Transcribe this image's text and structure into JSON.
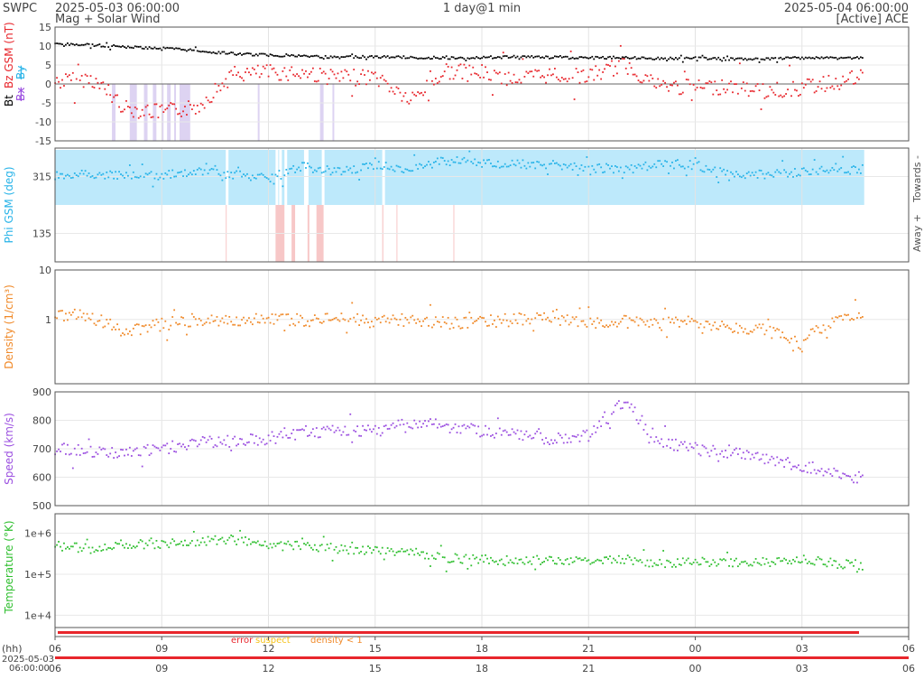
{
  "header": {
    "source": "SWPC",
    "start_time": "2025-05-03 06:00:00",
    "subtitle": "Mag + Solar Wind",
    "span": "1 day@1 min",
    "end_time": "2025-05-04 06:00:00",
    "status": "[Active] ACE"
  },
  "colors": {
    "bt": "#000000",
    "bz": "#e8262c",
    "bx": "#9b4fe0",
    "by": "#27b3e8",
    "phi": "#27b3e8",
    "density": "#f08a2a",
    "speed": "#9b4fe0",
    "temperature": "#2fbf2f",
    "shade_towards": "#bde9fb",
    "shade_away": "#f7c7c7",
    "shade_bz": "#ddd3f2",
    "error": "#e8262c",
    "suspect": "#f5c21b",
    "lowdensity": "#f08a2a"
  },
  "chart_data": [
    {
      "type": "scatter",
      "panel": "magnetic field",
      "ylabel_parts": [
        "Bt",
        "Bz GSM (nT)",
        "Bx",
        "By"
      ],
      "ylim": [
        -15,
        15
      ],
      "yticks": [
        15,
        10,
        5,
        0,
        -5,
        -10,
        -15
      ],
      "zero_line": true,
      "x_hours": [
        0,
        1,
        2,
        3,
        4,
        5,
        6,
        7,
        8,
        9,
        10,
        11,
        12,
        13,
        14,
        15,
        16,
        17,
        18,
        19,
        20,
        21,
        22,
        22.75
      ],
      "series": [
        {
          "name": "Bt",
          "values": [
            10.5,
            10.3,
            9.8,
            9.4,
            8.8,
            8.0,
            7.6,
            7.3,
            7.1,
            7.2,
            7.0,
            6.9,
            7.0,
            7.2,
            7.0,
            6.9,
            7.0,
            6.7,
            6.8,
            6.6,
            6.7,
            6.9,
            6.8,
            6.9
          ]
        },
        {
          "name": "Bz GSM",
          "values": [
            0.5,
            1.5,
            -6.5,
            -7.5,
            -6.0,
            2.5,
            3.0,
            3.0,
            1.5,
            2.0,
            -4.5,
            3.5,
            2.5,
            1.5,
            2.5,
            2.0,
            5.0,
            -0.5,
            -1.0,
            -0.5,
            -2.0,
            -1.0,
            0.5,
            2.0
          ]
        }
      ],
      "southward_shading_hours": [
        [
          1.5,
          3.8
        ],
        [
          5.7,
          5.8
        ],
        [
          7.4,
          7.6
        ],
        [
          7.8,
          7.9
        ]
      ]
    },
    {
      "type": "scatter",
      "panel": "phi",
      "ylabel": "Phi GSM (deg)",
      "right_labels": [
        "Towards -",
        "Away +"
      ],
      "ylim": [
        45,
        405
      ],
      "yticks": [
        315,
        135
      ],
      "x_hours": [
        0,
        1,
        2,
        3,
        4,
        5,
        6,
        7,
        8,
        9,
        10,
        11,
        12,
        13,
        14,
        15,
        16,
        17,
        18,
        19,
        20,
        21,
        22,
        22.75
      ],
      "values": [
        318,
        322,
        316,
        320,
        330,
        322,
        310,
        345,
        328,
        350,
        340,
        365,
        358,
        355,
        350,
        343,
        335,
        358,
        350,
        325,
        320,
        330,
        335,
        338
      ],
      "towards_band_hours": [
        0,
        22.75
      ],
      "away_spikes_hours": [
        4.8,
        6.2,
        6.4,
        6.5,
        7.0,
        7.3,
        7.5,
        9.2,
        9.5,
        11.2
      ]
    },
    {
      "type": "scatter",
      "panel": "density",
      "ylabel": "Density (1/cm³)",
      "yscale": "log",
      "ylim": [
        0.05,
        10
      ],
      "yticks": [
        10,
        1
      ],
      "x_hours": [
        0,
        1,
        2,
        3,
        4,
        5,
        6,
        7,
        8,
        9,
        10,
        11,
        12,
        13,
        14,
        15,
        16,
        17,
        18,
        19,
        20,
        21,
        22,
        22.75
      ],
      "values": [
        1.3,
        1.1,
        0.55,
        0.8,
        1.0,
        0.95,
        1.0,
        0.95,
        1.05,
        0.9,
        1.0,
        0.85,
        0.9,
        1.0,
        1.1,
        0.8,
        0.9,
        0.8,
        0.9,
        0.7,
        0.6,
        0.3,
        1.0,
        1.2
      ]
    },
    {
      "type": "scatter",
      "panel": "speed",
      "ylabel": "Speed (km/s)",
      "ylim": [
        500,
        900
      ],
      "yticks": [
        900,
        800,
        700,
        600,
        500
      ],
      "x_hours": [
        0,
        1,
        2,
        3,
        4,
        5,
        6,
        7,
        8,
        9,
        10,
        11,
        12,
        13,
        14,
        15,
        16,
        17,
        18,
        19,
        20,
        21,
        22,
        22.75
      ],
      "values": [
        700,
        690,
        690,
        700,
        720,
        725,
        735,
        760,
        760,
        765,
        790,
        780,
        760,
        750,
        735,
        745,
        870,
        720,
        700,
        690,
        660,
        640,
        610,
        600
      ]
    },
    {
      "type": "scatter",
      "panel": "temperature",
      "ylabel": "Temperature (°K)",
      "yscale": "log",
      "ylim": [
        5000,
        3000000
      ],
      "yticks_labels": [
        "1e+6",
        "1e+5",
        "1e+4"
      ],
      "yticks": [
        1000000,
        100000,
        10000
      ],
      "x_hours": [
        0,
        1,
        2,
        3,
        4,
        5,
        6,
        7,
        8,
        9,
        10,
        11,
        12,
        13,
        14,
        15,
        16,
        17,
        18,
        19,
        20,
        21,
        22,
        22.75
      ],
      "values": [
        500000,
        420000,
        550000,
        520000,
        650000,
        700000,
        550000,
        500000,
        420000,
        380000,
        350000,
        250000,
        230000,
        220000,
        220000,
        230000,
        230000,
        180000,
        200000,
        190000,
        200000,
        230000,
        180000,
        160000
      ]
    }
  ],
  "legend": {
    "error": "error",
    "suspect": "suspect",
    "lowdensity": "density < 1"
  },
  "xaxis": {
    "unit_label": "(hh)",
    "tick_labels": [
      "06",
      "09",
      "12",
      "15",
      "18",
      "21",
      "00",
      "03",
      "06"
    ],
    "date_label_line1": "2025-05-03",
    "date_label_line2": "06:00:00"
  }
}
